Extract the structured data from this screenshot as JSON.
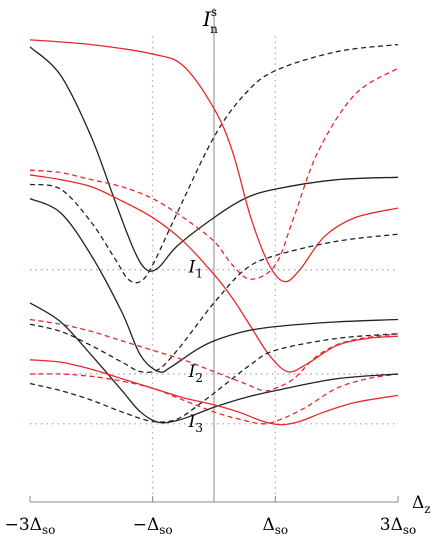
{
  "chart_data": {
    "type": "line",
    "ylabel": "I",
    "ylabel_sub": "n",
    "ylabel_sup": "s",
    "xlabel": "Δ",
    "xlabel_sub": "z",
    "xlim": [
      -3,
      3
    ],
    "ylim": [
      0,
      1
    ],
    "grid": false,
    "x_ticks": [
      {
        "value": -3,
        "label": "−3Δ",
        "sub": "so"
      },
      {
        "value": -1,
        "label": "−Δ",
        "sub": "so"
      },
      {
        "value": 1,
        "label": "Δ",
        "sub": "so"
      },
      {
        "value": 3,
        "label": "3Δ",
        "sub": "so"
      }
    ],
    "reference_lines": {
      "vertical_dotted": [
        -1,
        1
      ],
      "vertical_solid": [
        0
      ],
      "horizontal_dotted": [
        {
          "y": 0.49,
          "label": "I",
          "sub": "1",
          "label_x": -0.25
        },
        {
          "y": 0.27,
          "label": "I",
          "sub": "2",
          "label_x": -0.25
        },
        {
          "y": 0.165,
          "label": "I",
          "sub": "3",
          "label_x": -0.25
        }
      ]
    },
    "colors": {
      "black": "#222222",
      "red": "#e8282b",
      "guide": "#9aa0e0",
      "vguide": "#d9a0a0",
      "axis": "#888888"
    },
    "series": [
      {
        "color": "black",
        "dash": "solid",
        "points": [
          [
            -3,
            0.96
          ],
          [
            -2.5,
            0.9
          ],
          [
            -2,
            0.77
          ],
          [
            -1.6,
            0.63
          ],
          [
            -1.3,
            0.53
          ],
          [
            -1.1,
            0.49
          ],
          [
            -0.9,
            0.495
          ],
          [
            -0.6,
            0.54
          ],
          [
            0,
            0.6
          ],
          [
            0.5,
            0.64
          ],
          [
            1,
            0.66
          ],
          [
            2,
            0.68
          ],
          [
            3,
            0.685
          ]
        ]
      },
      {
        "color": "black",
        "dash": "dashed",
        "points": [
          [
            -3,
            0.67
          ],
          [
            -2.5,
            0.66
          ],
          [
            -2,
            0.59
          ],
          [
            -1.6,
            0.51
          ],
          [
            -1.4,
            0.47
          ],
          [
            -1.2,
            0.465
          ],
          [
            -1,
            0.5
          ],
          [
            -0.6,
            0.61
          ],
          [
            0,
            0.77
          ],
          [
            0.5,
            0.86
          ],
          [
            1,
            0.91
          ],
          [
            2,
            0.95
          ],
          [
            3,
            0.965
          ]
        ]
      },
      {
        "color": "red",
        "dash": "solid",
        "points": [
          [
            -3,
            0.975
          ],
          [
            -2,
            0.965
          ],
          [
            -1,
            0.945
          ],
          [
            -0.5,
            0.92
          ],
          [
            0,
            0.83
          ],
          [
            0.3,
            0.74
          ],
          [
            0.6,
            0.6
          ],
          [
            0.9,
            0.5
          ],
          [
            1.15,
            0.465
          ],
          [
            1.4,
            0.49
          ],
          [
            1.8,
            0.56
          ],
          [
            2.3,
            0.6
          ],
          [
            3,
            0.62
          ]
        ]
      },
      {
        "color": "red",
        "dash": "dashed",
        "points": [
          [
            -3,
            0.7
          ],
          [
            -2.5,
            0.695
          ],
          [
            -2,
            0.68
          ],
          [
            -1.5,
            0.665
          ],
          [
            -1,
            0.64
          ],
          [
            -0.5,
            0.6
          ],
          [
            0,
            0.55
          ],
          [
            0.3,
            0.5
          ],
          [
            0.6,
            0.47
          ],
          [
            1,
            0.5
          ],
          [
            1.3,
            0.6
          ],
          [
            1.7,
            0.74
          ],
          [
            2.3,
            0.86
          ],
          [
            3,
            0.915
          ]
        ]
      },
      {
        "color": "red",
        "dash": "solid",
        "points": [
          [
            -3,
            0.69
          ],
          [
            -2.5,
            0.68
          ],
          [
            -2,
            0.665
          ],
          [
            -1.5,
            0.635
          ],
          [
            -1,
            0.6
          ],
          [
            -0.5,
            0.55
          ],
          [
            0,
            0.48
          ],
          [
            0.3,
            0.43
          ],
          [
            0.6,
            0.37
          ],
          [
            0.9,
            0.31
          ],
          [
            1.2,
            0.275
          ],
          [
            1.5,
            0.29
          ],
          [
            2,
            0.33
          ],
          [
            2.5,
            0.345
          ],
          [
            3,
            0.35
          ]
        ]
      },
      {
        "color": "black",
        "dash": "solid",
        "points": [
          [
            -3,
            0.64
          ],
          [
            -2.5,
            0.61
          ],
          [
            -2,
            0.52
          ],
          [
            -1.5,
            0.4
          ],
          [
            -1.2,
            0.31
          ],
          [
            -0.9,
            0.275
          ],
          [
            -0.7,
            0.285
          ],
          [
            -0.3,
            0.32
          ],
          [
            0,
            0.34
          ],
          [
            0.5,
            0.36
          ],
          [
            1,
            0.37
          ],
          [
            2,
            0.38
          ],
          [
            3,
            0.385
          ]
        ]
      },
      {
        "color": "black",
        "dash": "dashed",
        "points": [
          [
            -3,
            0.375
          ],
          [
            -2.5,
            0.36
          ],
          [
            -2,
            0.33
          ],
          [
            -1.5,
            0.295
          ],
          [
            -1.2,
            0.275
          ],
          [
            -0.9,
            0.28
          ],
          [
            -0.6,
            0.32
          ],
          [
            -0.3,
            0.37
          ],
          [
            0,
            0.42
          ],
          [
            0.5,
            0.49
          ],
          [
            1,
            0.52
          ],
          [
            2,
            0.55
          ],
          [
            3,
            0.565
          ]
        ]
      },
      {
        "color": "red",
        "dash": "dashed",
        "points": [
          [
            -3,
            0.385
          ],
          [
            -2.5,
            0.375
          ],
          [
            -2,
            0.36
          ],
          [
            -1.5,
            0.34
          ],
          [
            -1,
            0.32
          ],
          [
            -0.5,
            0.3
          ],
          [
            0,
            0.275
          ],
          [
            0.5,
            0.25
          ],
          [
            0.8,
            0.235
          ],
          [
            1,
            0.24
          ],
          [
            1.3,
            0.26
          ],
          [
            1.7,
            0.31
          ],
          [
            2.2,
            0.34
          ],
          [
            3,
            0.355
          ]
        ]
      },
      {
        "color": "red",
        "dash": "dashed",
        "points": [
          [
            -3,
            0.27
          ],
          [
            -2.5,
            0.27
          ],
          [
            -2,
            0.265
          ],
          [
            -1.5,
            0.255
          ],
          [
            -1,
            0.24
          ],
          [
            -0.5,
            0.215
          ],
          [
            0,
            0.19
          ],
          [
            0.4,
            0.175
          ],
          [
            0.8,
            0.165
          ],
          [
            1.1,
            0.175
          ],
          [
            1.5,
            0.2
          ],
          [
            2,
            0.24
          ],
          [
            2.5,
            0.26
          ],
          [
            3,
            0.27
          ]
        ]
      },
      {
        "color": "black",
        "dash": "solid",
        "points": [
          [
            -3,
            0.42
          ],
          [
            -2.5,
            0.38
          ],
          [
            -2,
            0.31
          ],
          [
            -1.5,
            0.235
          ],
          [
            -1.2,
            0.19
          ],
          [
            -0.9,
            0.168
          ],
          [
            -0.6,
            0.172
          ],
          [
            -0.3,
            0.185
          ],
          [
            0,
            0.2
          ],
          [
            0.5,
            0.22
          ],
          [
            1,
            0.235
          ],
          [
            2,
            0.26
          ],
          [
            3,
            0.27
          ]
        ]
      },
      {
        "color": "black",
        "dash": "dashed",
        "points": [
          [
            -3,
            0.25
          ],
          [
            -2.5,
            0.235
          ],
          [
            -2,
            0.215
          ],
          [
            -1.5,
            0.19
          ],
          [
            -1,
            0.17
          ],
          [
            -0.6,
            0.175
          ],
          [
            -0.2,
            0.21
          ],
          [
            0.2,
            0.25
          ],
          [
            0.6,
            0.29
          ],
          [
            1,
            0.32
          ],
          [
            2,
            0.345
          ],
          [
            3,
            0.355
          ]
        ]
      },
      {
        "color": "red",
        "dash": "solid",
        "points": [
          [
            -3,
            0.3
          ],
          [
            -2.5,
            0.295
          ],
          [
            -2,
            0.28
          ],
          [
            -1.5,
            0.26
          ],
          [
            -1,
            0.24
          ],
          [
            -0.5,
            0.22
          ],
          [
            0,
            0.205
          ],
          [
            0.4,
            0.19
          ],
          [
            0.8,
            0.17
          ],
          [
            1.1,
            0.163
          ],
          [
            1.4,
            0.17
          ],
          [
            1.8,
            0.19
          ],
          [
            2.3,
            0.21
          ],
          [
            3,
            0.225
          ]
        ]
      }
    ]
  }
}
